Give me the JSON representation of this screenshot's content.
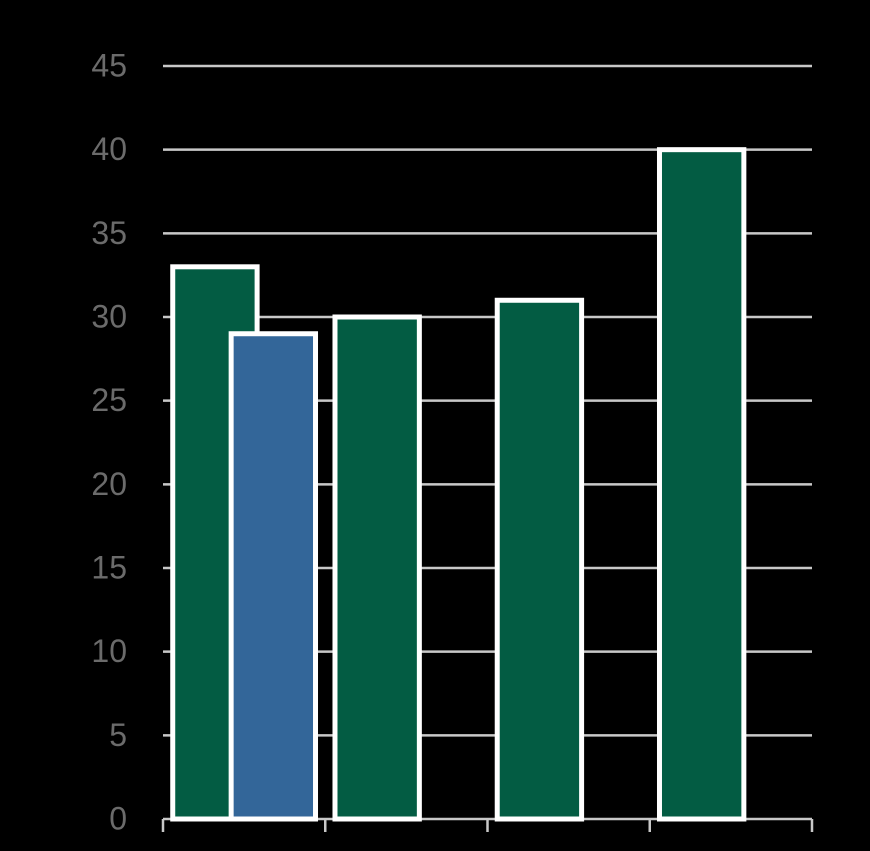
{
  "chart_data": {
    "type": "bar",
    "categories": [
      null,
      null,
      null,
      null
    ],
    "series": [
      {
        "color": "#035c43",
        "values": [
          33,
          30,
          31,
          40
        ]
      },
      {
        "color": "#336699",
        "values": [
          29,
          null,
          null,
          null
        ]
      }
    ],
    "ylim": [
      0,
      45
    ],
    "yticks": [
      0,
      5,
      10,
      15,
      20,
      25,
      30,
      35,
      40,
      45
    ],
    "grid": true
  }
}
